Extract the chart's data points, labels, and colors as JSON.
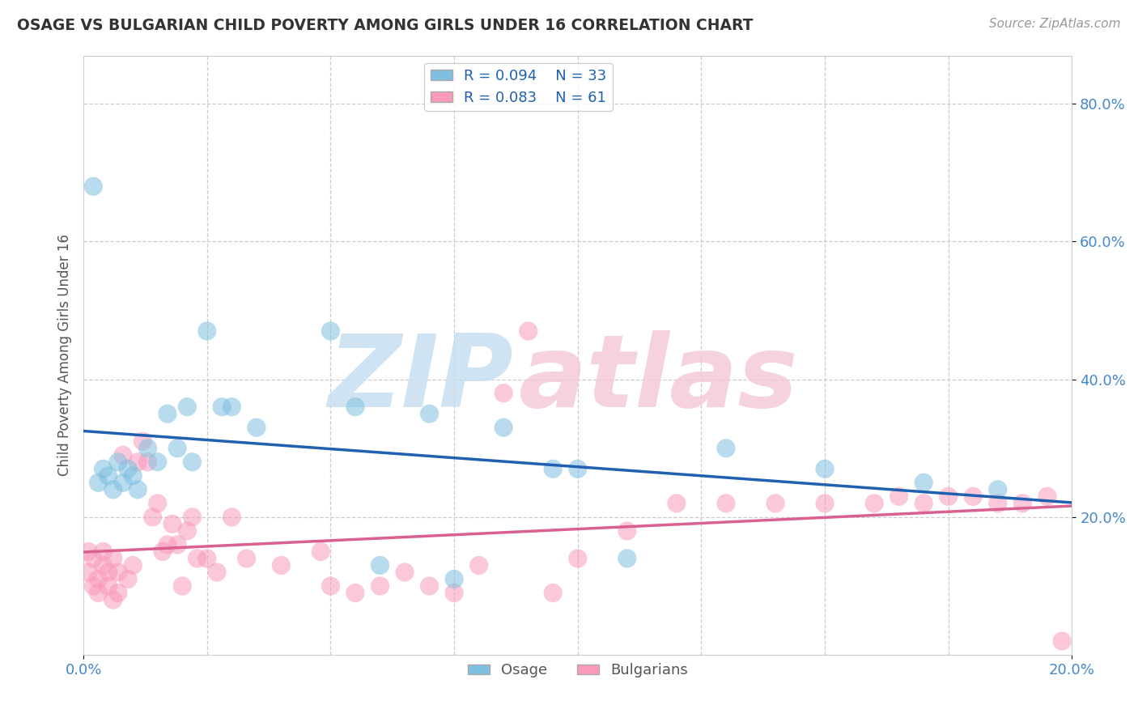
{
  "title": "OSAGE VS BULGARIAN CHILD POVERTY AMONG GIRLS UNDER 16 CORRELATION CHART",
  "source": "Source: ZipAtlas.com",
  "ylabel": "Child Poverty Among Girls Under 16",
  "xlim": [
    0.0,
    0.2
  ],
  "ylim": [
    0.0,
    0.87
  ],
  "osage_R": 0.094,
  "osage_N": 33,
  "bulgarian_R": 0.083,
  "bulgarian_N": 61,
  "osage_color": "#7fbfdf",
  "bulgarian_color": "#f999bc",
  "osage_line_color": "#2060b0",
  "bulgarian_line_color": "#d96090",
  "tick_label_color": "#4488cc",
  "watermark_zip_color": "#c8dff0",
  "watermark_atlas_color": "#f5cad8",
  "background_color": "#ffffff",
  "grid_color": "#cccccc",
  "osage_x": [
    0.002,
    0.003,
    0.004,
    0.005,
    0.006,
    0.007,
    0.008,
    0.009,
    0.01,
    0.011,
    0.013,
    0.015,
    0.017,
    0.019,
    0.021,
    0.022,
    0.025,
    0.028,
    0.03,
    0.035,
    0.05,
    0.055,
    0.06,
    0.07,
    0.075,
    0.085,
    0.095,
    0.1,
    0.11,
    0.13,
    0.15,
    0.17,
    0.185
  ],
  "osage_y": [
    0.68,
    0.25,
    0.27,
    0.26,
    0.24,
    0.28,
    0.25,
    0.27,
    0.26,
    0.24,
    0.3,
    0.28,
    0.35,
    0.3,
    0.36,
    0.28,
    0.47,
    0.36,
    0.36,
    0.33,
    0.47,
    0.36,
    0.13,
    0.35,
    0.11,
    0.33,
    0.27,
    0.27,
    0.14,
    0.3,
    0.27,
    0.25,
    0.24
  ],
  "bulgarian_x": [
    0.001,
    0.001,
    0.002,
    0.002,
    0.003,
    0.003,
    0.004,
    0.004,
    0.005,
    0.005,
    0.006,
    0.006,
    0.007,
    0.007,
    0.008,
    0.009,
    0.01,
    0.011,
    0.012,
    0.013,
    0.014,
    0.015,
    0.016,
    0.017,
    0.018,
    0.019,
    0.02,
    0.021,
    0.022,
    0.023,
    0.025,
    0.027,
    0.03,
    0.033,
    0.04,
    0.048,
    0.05,
    0.055,
    0.06,
    0.065,
    0.07,
    0.075,
    0.08,
    0.085,
    0.09,
    0.095,
    0.1,
    0.11,
    0.12,
    0.13,
    0.14,
    0.15,
    0.16,
    0.165,
    0.17,
    0.175,
    0.18,
    0.185,
    0.19,
    0.195,
    0.198
  ],
  "bulgarian_y": [
    0.15,
    0.12,
    0.1,
    0.14,
    0.11,
    0.09,
    0.13,
    0.15,
    0.1,
    0.12,
    0.08,
    0.14,
    0.09,
    0.12,
    0.29,
    0.11,
    0.13,
    0.28,
    0.31,
    0.28,
    0.2,
    0.22,
    0.15,
    0.16,
    0.19,
    0.16,
    0.1,
    0.18,
    0.2,
    0.14,
    0.14,
    0.12,
    0.2,
    0.14,
    0.13,
    0.15,
    0.1,
    0.09,
    0.1,
    0.12,
    0.1,
    0.09,
    0.13,
    0.38,
    0.47,
    0.09,
    0.14,
    0.18,
    0.22,
    0.22,
    0.22,
    0.22,
    0.22,
    0.23,
    0.22,
    0.23,
    0.23,
    0.22,
    0.22,
    0.23,
    0.02
  ]
}
